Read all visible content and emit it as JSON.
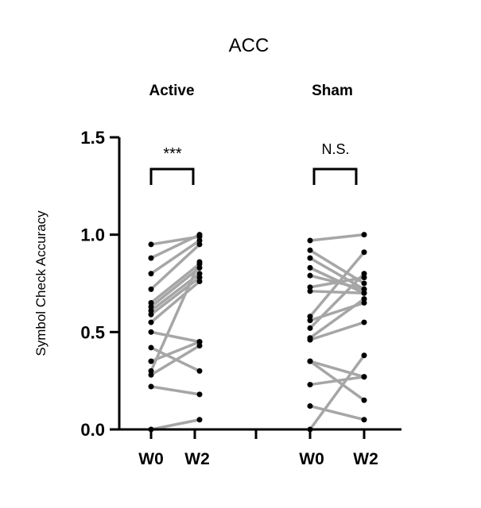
{
  "chart_data": {
    "type": "line",
    "title": "ACC",
    "ylabel": "Symbol Check Accuracy",
    "ylim": [
      0,
      1.5
    ],
    "yticks": [
      "0.0",
      "0.5",
      "1.0",
      "1.5"
    ],
    "ytick_values": [
      0,
      0.5,
      1.0,
      1.5
    ],
    "grid": false,
    "groups": [
      {
        "name": "Active",
        "categories": [
          "W0",
          "W2"
        ],
        "significance": "***",
        "pairs": [
          [
            0.95,
            0.99
          ],
          [
            0.88,
            1.0
          ],
          [
            0.8,
            0.97
          ],
          [
            0.72,
            0.95
          ],
          [
            0.65,
            0.85
          ],
          [
            0.63,
            0.83
          ],
          [
            0.61,
            0.8
          ],
          [
            0.59,
            0.78
          ],
          [
            0.55,
            0.76
          ],
          [
            0.5,
            0.45
          ],
          [
            0.42,
            0.3
          ],
          [
            0.35,
            0.45
          ],
          [
            0.3,
            0.86
          ],
          [
            0.28,
            0.43
          ],
          [
            0.22,
            0.18
          ],
          [
            0.0,
            0.05
          ]
        ]
      },
      {
        "name": "Sham",
        "categories": [
          "W0",
          "W2"
        ],
        "significance": "N.S.",
        "pairs": [
          [
            0.97,
            1.0
          ],
          [
            0.92,
            0.75
          ],
          [
            0.88,
            0.72
          ],
          [
            0.83,
            0.7
          ],
          [
            0.79,
            0.72
          ],
          [
            0.73,
            0.78
          ],
          [
            0.71,
            0.7
          ],
          [
            0.58,
            0.91
          ],
          [
            0.56,
            0.65
          ],
          [
            0.52,
            0.8
          ],
          [
            0.47,
            0.67
          ],
          [
            0.46,
            0.55
          ],
          [
            0.35,
            0.27
          ],
          [
            0.35,
            0.15
          ],
          [
            0.23,
            0.27
          ],
          [
            0.12,
            0.05
          ],
          [
            0.0,
            0.38
          ]
        ]
      }
    ]
  }
}
